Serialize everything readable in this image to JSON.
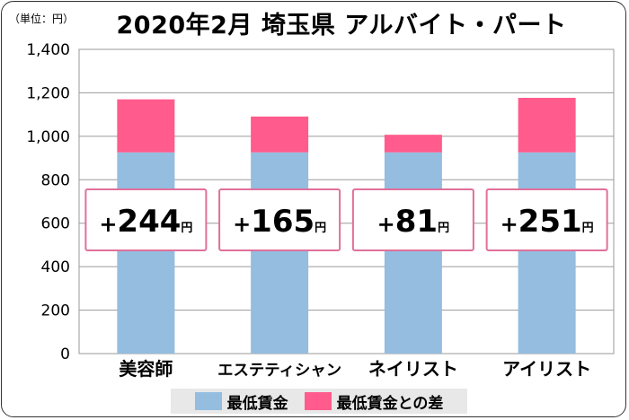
{
  "unit_label": "（単位：円）",
  "chart_data": {
    "type": "bar",
    "stacked": true,
    "title": "2020年2月 埼玉県 アルバイト・パート",
    "categories": [
      "美容師",
      "エステティシャン",
      "ネイリスト",
      "アイリスト"
    ],
    "series": [
      {
        "name": "最低賃金",
        "values": [
          926,
          926,
          926,
          926
        ],
        "color": "#94bde0"
      },
      {
        "name": "最低賃金との差",
        "values": [
          244,
          165,
          81,
          251
        ],
        "color": "#ff5b8c"
      }
    ],
    "diff_labels": [
      {
        "prefix": "+",
        "value": "244",
        "unit": "円"
      },
      {
        "prefix": "+",
        "value": "165",
        "unit": "円"
      },
      {
        "prefix": "+",
        "value": "81",
        "unit": "円"
      },
      {
        "prefix": "+",
        "value": "251",
        "unit": "円"
      }
    ],
    "ylim": [
      0,
      1400
    ],
    "yticks": [
      "0",
      "200",
      "400",
      "600",
      "800",
      "1,000",
      "1,200",
      "1,400"
    ],
    "ytick_values": [
      0,
      200,
      400,
      600,
      800,
      1000,
      1200,
      1400
    ],
    "grid": true,
    "legend_position": "bottom"
  }
}
